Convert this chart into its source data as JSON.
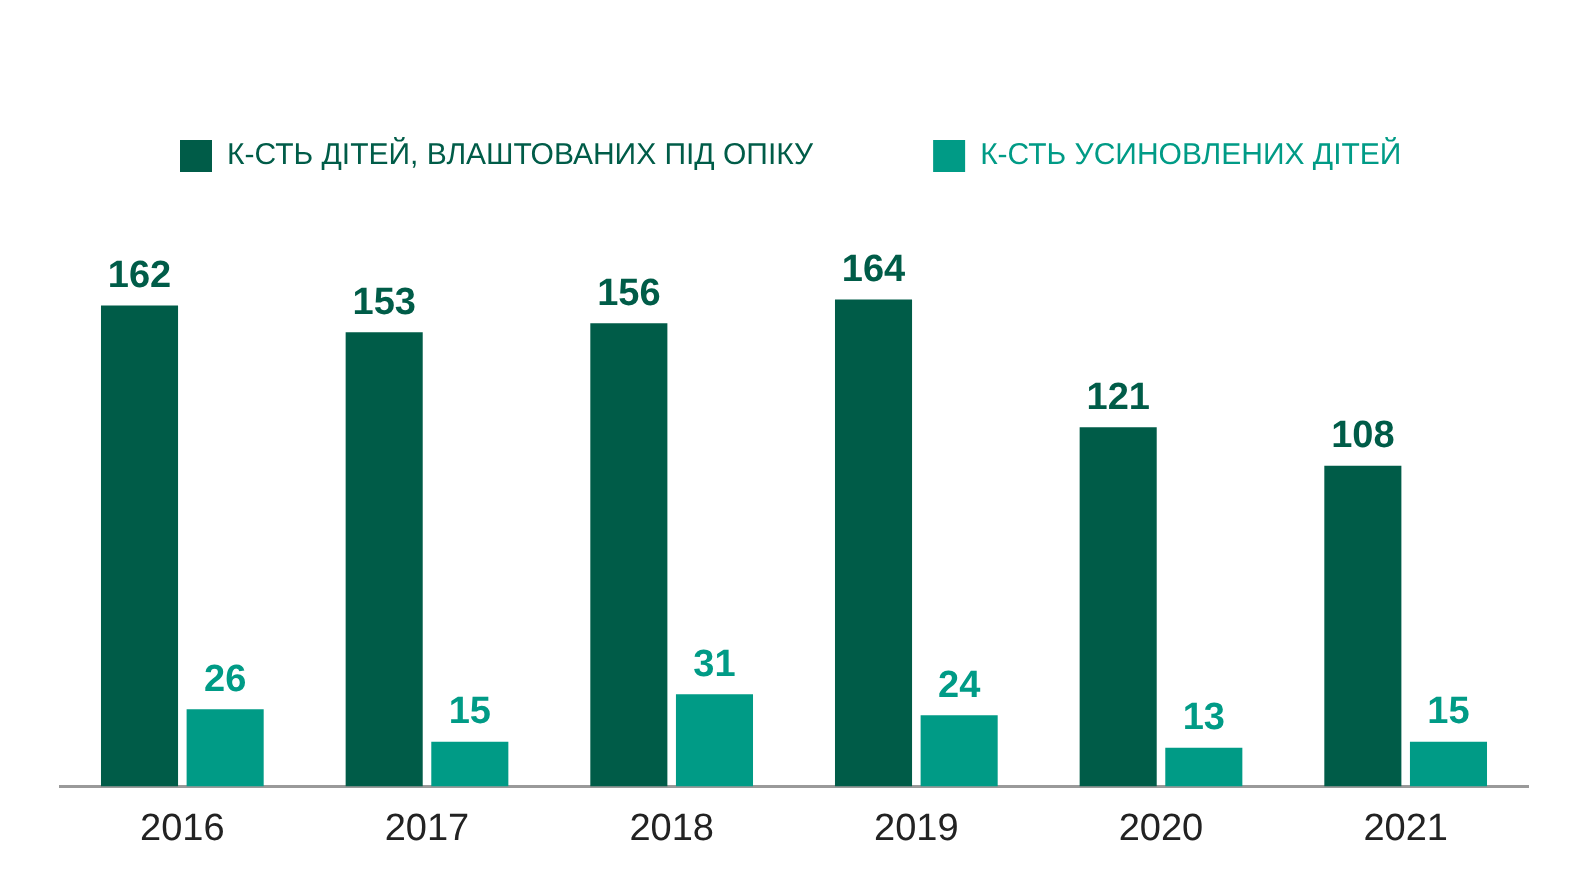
{
  "chart_data": {
    "type": "bar",
    "categories": [
      "2016",
      "2017",
      "2018",
      "2019",
      "2020",
      "2021"
    ],
    "series": [
      {
        "name": "К-СТЬ ДІТЕЙ, ВЛАШТОВАНИХ ПІД ОПІКУ",
        "color": "#005c48",
        "values": [
          162,
          153,
          156,
          164,
          121,
          108
        ]
      },
      {
        "name": "К-СТЬ УСИНОВЛЕНИХ ДІТЕЙ",
        "color": "#009b86",
        "values": [
          26,
          15,
          31,
          24,
          13,
          15
        ]
      }
    ],
    "data_labels": true,
    "legend": "top left",
    "grid": false
  }
}
